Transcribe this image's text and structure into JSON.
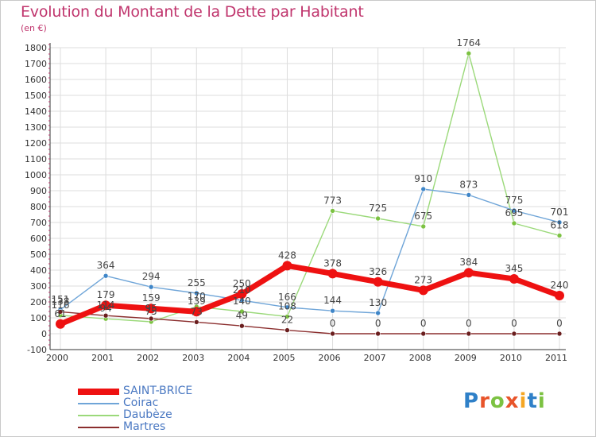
{
  "header": {
    "title": "Evolution du Montant de la Dette par Habitant",
    "subtitle": "(en €)"
  },
  "colors": {
    "title": "#c0356d",
    "grid": "#dddddd",
    "axis": "#333333",
    "legend_text": "#4a78c2"
  },
  "chart_data": {
    "type": "line",
    "title": "Evolution du Montant de la Dette par Habitant",
    "subtitle": "(en €)",
    "xlabel": "",
    "ylabel": "",
    "x": [
      "2000",
      "2001",
      "2002",
      "2003",
      "2004",
      "2005",
      "2006",
      "2007",
      "2008",
      "2009",
      "2010",
      "2011"
    ],
    "ylim": [
      -100,
      1800
    ],
    "yticks": [
      -100,
      0,
      100,
      200,
      300,
      400,
      500,
      600,
      700,
      800,
      900,
      1000,
      1100,
      1200,
      1300,
      1400,
      1500,
      1600,
      1700,
      1800
    ],
    "grid": true,
    "legend_position": "bottom-left",
    "series": [
      {
        "name": "Daubèze",
        "color": "#9bd97a",
        "marker": "#7cc242",
        "values": [
          116,
          94,
          75,
          170,
          140,
          108,
          773,
          725,
          675,
          1764,
          695,
          618
        ],
        "labels": [
          "116",
          "94",
          "75",
          "170",
          "140",
          "108",
          "773",
          "725",
          "675",
          "1764",
          "695",
          "618"
        ]
      },
      {
        "name": "Coirac",
        "color": "#6fa5d8",
        "marker": "#3f86c8",
        "values": [
          151,
          364,
          294,
          255,
          210,
          166,
          144,
          130,
          910,
          873,
          775,
          701
        ],
        "labels": [
          "151",
          "364",
          "294",
          "255",
          "210",
          "166",
          "144",
          "130",
          "910",
          "873",
          "775",
          "701"
        ]
      },
      {
        "name": "Martres",
        "color": "#8b2e2e",
        "marker": "#6a1e1e",
        "values": [
          138,
          114,
          95,
          73,
          49,
          22,
          0,
          0,
          0,
          0,
          0,
          0
        ],
        "labels": [
          "138",
          "114",
          "95",
          "73",
          "49",
          "22",
          "0",
          "0",
          "0",
          "0",
          "0",
          "0"
        ]
      },
      {
        "name": "SAINT-BRICE",
        "color": "#ee1111",
        "marker": "#ee1111",
        "values": [
          61,
          179,
          159,
          139,
          250,
          428,
          378,
          326,
          273,
          384,
          345,
          240
        ],
        "labels": [
          "61",
          "179",
          "159",
          "139",
          "250",
          "428",
          "378",
          "326",
          "273",
          "384",
          "345",
          "240"
        ]
      }
    ],
    "legend_order": [
      "SAINT-BRICE",
      "Coirac",
      "Daubèze",
      "Martres"
    ]
  },
  "logo": {
    "letters": [
      "P",
      "r",
      "o",
      "x",
      "i",
      "t",
      "i"
    ],
    "colors": [
      "#2f80c8",
      "#e8542a",
      "#7cc242",
      "#e8542a",
      "#f5a623",
      "#2f80c8",
      "#7cc242"
    ]
  }
}
